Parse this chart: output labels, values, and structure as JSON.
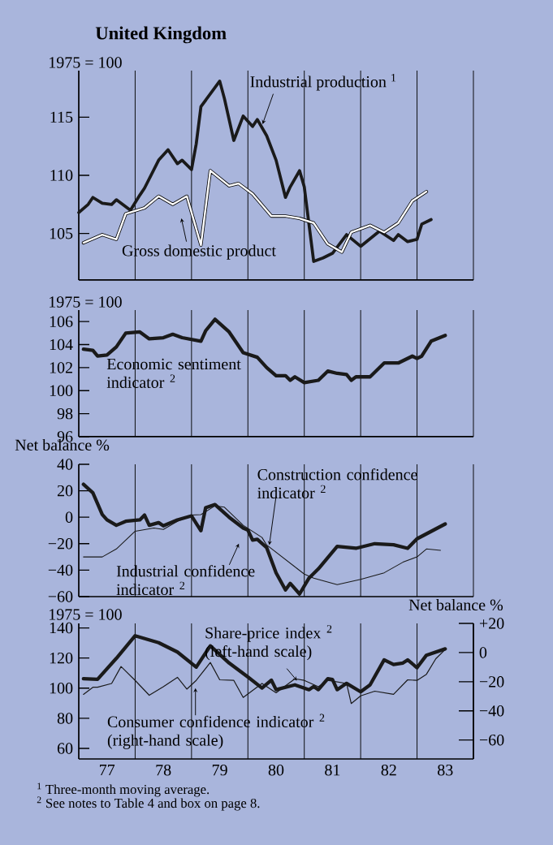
{
  "chart_data": [
    {
      "type": "line",
      "title": "United Kingdom",
      "ylabel": "1975 = 100",
      "xlim": [
        "1977-01",
        "1984-01"
      ],
      "ylim": [
        101,
        119
      ],
      "yticks": [
        105,
        110,
        115
      ],
      "grid": "x",
      "tick_labels": "y",
      "xticks": [
        {
          "value": "1978-01",
          "label": null
        },
        {
          "value": "1979-01",
          "label": null
        },
        {
          "value": "1980-01",
          "label": null
        },
        {
          "value": "1981-01",
          "label": null
        },
        {
          "value": "1982-01",
          "label": null
        },
        {
          "value": "1983-01",
          "label": null
        },
        {
          "value": "1984-01",
          "label": null
        }
      ],
      "series": [
        {
          "name": "Industrial production $^{1}$",
          "color": "#1a1a1a",
          "x": [
            "1977-01",
            "1977-03",
            "1977-04",
            "1977-06",
            "1977-08",
            "1977-09",
            "1977-12",
            "1978-02",
            "1978-03",
            "1978-06",
            "1978-08",
            "1978-10",
            "1978-11",
            "1979-01",
            "1979-02",
            "1979-03",
            "1979-05",
            "1979-07",
            "1979-08",
            "1979-10",
            "1979-12",
            "1980-02",
            "1980-03",
            "1980-05",
            "1980-07",
            "1980-09",
            "1980-10",
            "1980-12",
            "1981-01",
            "1981-02",
            "1981-03",
            "1981-05",
            "1981-07",
            "1981-10",
            "1982-01",
            "1982-05",
            "1982-08",
            "1982-09",
            "1982-11",
            "1983-01",
            "1983-02",
            "1983-04"
          ],
          "values": [
            106.8,
            107.5,
            108.1,
            107.6,
            107.5,
            107.9,
            107.0,
            108.3,
            108.9,
            111.3,
            112.2,
            111.0,
            111.3,
            110.5,
            112.7,
            115.9,
            117.0,
            118.1,
            116.6,
            113.0,
            115.1,
            114.2,
            114.8,
            113.4,
            111.3,
            108.1,
            109.0,
            110.4,
            109.0,
            105.8,
            102.6,
            102.9,
            103.3,
            104.9,
            103.9,
            105.2,
            104.4,
            104.9,
            104.3,
            104.5,
            105.8,
            106.2
          ]
        },
        {
          "name": "Gross domestic product",
          "color": "#ffffff",
          "x": [
            "1977-02",
            "1977-06",
            "1977-09",
            "1977-11",
            "1978-03",
            "1978-06",
            "1978-09",
            "1978-12",
            "1979-03",
            "1979-05",
            "1979-09",
            "1979-11",
            "1980-02",
            "1980-06",
            "1980-09",
            "1980-12",
            "1981-03",
            "1981-06",
            "1981-09",
            "1981-11",
            "1982-03",
            "1982-06",
            "1982-09",
            "1982-12",
            "1983-03"
          ],
          "values": [
            104.2,
            104.9,
            104.5,
            106.7,
            107.2,
            108.2,
            107.5,
            108.2,
            104.0,
            110.4,
            109.1,
            109.3,
            108.4,
            106.5,
            106.5,
            106.3,
            105.9,
            104.1,
            103.4,
            105.1,
            105.7,
            105.1,
            105.9,
            107.8,
            108.6
          ]
        }
      ]
    },
    {
      "type": "line",
      "ylabel": "1975 = 100",
      "xlim": [
        "1977-01",
        "1984-01"
      ],
      "ylim": [
        96,
        107
      ],
      "yticks": [
        96,
        98,
        100,
        102,
        104,
        106
      ],
      "grid": "x",
      "tick_labels": "y",
      "xticks": [
        {
          "value": "1978-01",
          "label": null
        },
        {
          "value": "1979-01",
          "label": null
        },
        {
          "value": "1980-01",
          "label": null
        },
        {
          "value": "1981-01",
          "label": null
        },
        {
          "value": "1982-01",
          "label": null
        },
        {
          "value": "1983-01",
          "label": null
        },
        {
          "value": "1984-01",
          "label": null
        }
      ],
      "series": [
        {
          "name": "Economic sentiment indicator $^{2}$",
          "color": "#1a1a1a",
          "x": [
            "1977-02",
            "1977-04",
            "1977-05",
            "1977-07",
            "1977-09",
            "1977-11",
            "1978-02",
            "1978-04",
            "1978-07",
            "1978-09",
            "1978-11",
            "1979-03",
            "1979-04",
            "1979-06",
            "1979-09",
            "1979-12",
            "1980-03",
            "1980-05",
            "1980-07",
            "1980-09",
            "1980-10",
            "1980-11",
            "1981-01",
            "1981-04",
            "1981-06",
            "1981-08",
            "1981-10",
            "1981-11",
            "1981-12",
            "1982-03",
            "1982-06",
            "1982-09",
            "1982-12",
            "1983-01",
            "1983-02",
            "1983-04",
            "1983-07"
          ],
          "values": [
            103.6,
            103.5,
            103.0,
            103.1,
            103.8,
            105.0,
            105.1,
            104.5,
            104.6,
            104.9,
            104.6,
            104.3,
            105.2,
            106.2,
            105.1,
            103.3,
            102.9,
            102.0,
            101.3,
            101.3,
            100.9,
            101.2,
            100.7,
            100.9,
            101.7,
            101.5,
            101.4,
            100.9,
            101.2,
            101.2,
            102.4,
            102.4,
            103.0,
            102.8,
            103.0,
            104.3,
            104.8
          ]
        }
      ]
    },
    {
      "type": "line",
      "ylabel": "Net balance %",
      "xlim": [
        "1977-01",
        "1984-01"
      ],
      "ylim": [
        -60,
        40
      ],
      "yticks": [
        {
          "value": -60,
          "label": "−60"
        },
        {
          "value": -40,
          "label": "−40"
        },
        {
          "value": -20,
          "label": "−20"
        },
        0,
        20,
        40
      ],
      "grid": "x",
      "tick_labels": "y",
      "xticks": [
        {
          "value": "1978-01",
          "label": null
        },
        {
          "value": "1979-01",
          "label": null
        },
        {
          "value": "1980-01",
          "label": null
        },
        {
          "value": "1981-01",
          "label": null
        },
        {
          "value": "1982-01",
          "label": null
        },
        {
          "value": "1983-01",
          "label": null
        },
        {
          "value": "1984-01",
          "label": null
        }
      ],
      "series": [
        {
          "name": "Industrial confidence indicator $^{2}$",
          "color": "#1a1a1a",
          "x": [
            "1977-02",
            "1977-04",
            "1977-06",
            "1977-07",
            "1977-09",
            "1977-11",
            "1978-02",
            "1978-03",
            "1978-04",
            "1978-06",
            "1978-07",
            "1978-10",
            "1979-01",
            "1979-03",
            "1979-04",
            "1979-06",
            "1979-09",
            "1979-12",
            "1980-01",
            "1980-02",
            "1980-03",
            "1980-05",
            "1980-07",
            "1980-09",
            "1980-10",
            "1980-12",
            "1981-02",
            "1981-04",
            "1981-08",
            "1981-12",
            "1982-04",
            "1982-08",
            "1982-11",
            "1983-01",
            "1983-07"
          ],
          "values": [
            24.9,
            18.4,
            2.0,
            -2.0,
            -6.1,
            -3.1,
            -2.0,
            1.6,
            -6.1,
            -4.1,
            -6.5,
            -2.0,
            1.0,
            -10.2,
            7.1,
            9.6,
            0,
            -8.2,
            -9.8,
            -17.3,
            -16.7,
            -23,
            -42,
            -55,
            -50,
            -58,
            -46,
            -39,
            -22,
            -23.5,
            -20,
            -20.8,
            -23.5,
            -16.3,
            -5.1
          ]
        },
        {
          "name": "Construction confidence indicator $^{2}$",
          "color": "#1a1a1a",
          "x": [
            "1977-02",
            "1977-06",
            "1977-09",
            "1978-01",
            "1978-05",
            "1978-07",
            "1978-10",
            "1979-01",
            "1979-03",
            "1979-06",
            "1979-08",
            "1979-12",
            "1980-04",
            "1980-05",
            "1981-01",
            "1981-03",
            "1981-08",
            "1982-01",
            "1982-06",
            "1982-10",
            "1983-01",
            "1983-03",
            "1983-06"
          ],
          "values": [
            -30,
            -30,
            -24,
            -10.6,
            -8.2,
            -9.2,
            -3.1,
            1.6,
            2.0,
            8.6,
            7.6,
            -6.1,
            -15.3,
            -21,
            -43,
            -46,
            -51,
            -47,
            -42,
            -34,
            -30,
            -24,
            -25
          ]
        }
      ]
    },
    {
      "type": "line",
      "ylabel": "1975 = 100",
      "y2label": "Net balance %",
      "xlim": [
        "1977-01",
        "1984-01"
      ],
      "ylim": [
        53,
        143
      ],
      "yticks": [
        60,
        80,
        100,
        120,
        140
      ],
      "y2lim": [
        -73,
        20
      ],
      "y2ticks": [
        {
          "value": -60,
          "label": "−60"
        },
        {
          "value": -40,
          "label": "−40"
        },
        {
          "value": -20,
          "label": "−20"
        },
        0,
        {
          "value": 20,
          "label": "+20"
        }
      ],
      "grid": "x",
      "xticks": [
        {
          "value": "1978-01",
          "label": null
        },
        {
          "value": "1979-01",
          "label": null
        },
        {
          "value": "1980-01",
          "label": null
        },
        {
          "value": "1981-01",
          "label": null
        },
        {
          "value": "1982-01",
          "label": null
        },
        {
          "value": "1983-01",
          "label": null
        },
        {
          "value": "1984-01",
          "label": null
        },
        {
          "value": "1977-07",
          "label": "77"
        },
        {
          "value": "1978-07",
          "label": "78"
        },
        {
          "value": "1979-07",
          "label": "79"
        },
        {
          "value": "1980-07",
          "label": "80"
        },
        {
          "value": "1981-07",
          "label": "81"
        },
        {
          "value": "1982-07",
          "label": "82"
        },
        {
          "value": "1983-07",
          "label": "83"
        }
      ],
      "series": [
        {
          "name": "Share-price index $^{2}$ (left-hand scale)",
          "color": "#1a1a1a",
          "x": [
            "1977-02",
            "1977-05",
            "1977-09",
            "1978-01",
            "1978-06",
            "1978-10",
            "1979-02",
            "1979-05",
            "1979-09",
            "1980-01",
            "1980-04",
            "1980-06",
            "1980-07",
            "1980-11",
            "1981-02",
            "1981-03",
            "1981-04",
            "1981-06",
            "1981-07",
            "1981-08",
            "1981-10",
            "1982-01",
            "1982-03",
            "1982-06",
            "1982-08",
            "1982-10",
            "1982-11",
            "1983-01",
            "1983-03",
            "1983-07"
          ],
          "values": [
            106.3,
            105.9,
            119.8,
            134.8,
            130.2,
            124.0,
            114.0,
            128.1,
            116.7,
            107.4,
            100.1,
            105.3,
            99.0,
            102.2,
            99.0,
            101.1,
            99.0,
            106.3,
            105.7,
            99.0,
            103.2,
            97.6,
            102.2,
            118.8,
            115.7,
            116.7,
            118.8,
            113.6,
            121.9,
            126.1
          ]
        },
        {
          "name": "Consumer confidence indicator $^{2}$ (right-hand scale)",
          "color": "#1a1a1a",
          "axis": "y2",
          "x": [
            "1977-02",
            "1977-04",
            "1977-05",
            "1977-08",
            "1977-10",
            "1978-01",
            "1978-04",
            "1978-07",
            "1978-10",
            "1978-12",
            "1979-02",
            "1979-05",
            "1979-07",
            "1979-10",
            "1979-12",
            "1980-04",
            "1980-07",
            "1980-11",
            "1981-01",
            "1981-04",
            "1981-06",
            "1981-10",
            "1981-11",
            "1982-01",
            "1982-04",
            "1982-08",
            "1982-11",
            "1983-01",
            "1983-03",
            "1983-05",
            "1983-07"
          ],
          "values": [
            -28.7,
            -23.8,
            -23.8,
            -21.2,
            -9.6,
            -19.1,
            -29.3,
            -23.4,
            -17.0,
            -25.1,
            -19.1,
            -6.8,
            -18.7,
            -19.1,
            -30.8,
            -21.2,
            -27.6,
            -18.0,
            -19.1,
            -23.4,
            -19.1,
            -21.2,
            -35.0,
            -29.7,
            -26.5,
            -28.7,
            -18.7,
            -19.1,
            -14.9,
            -4.2,
            2.1
          ]
        }
      ],
      "annotations": [
        "$^{1}$ Three-month moving average.",
        "$^{2}$ See notes to Table 4 and box on page 8."
      ]
    }
  ]
}
